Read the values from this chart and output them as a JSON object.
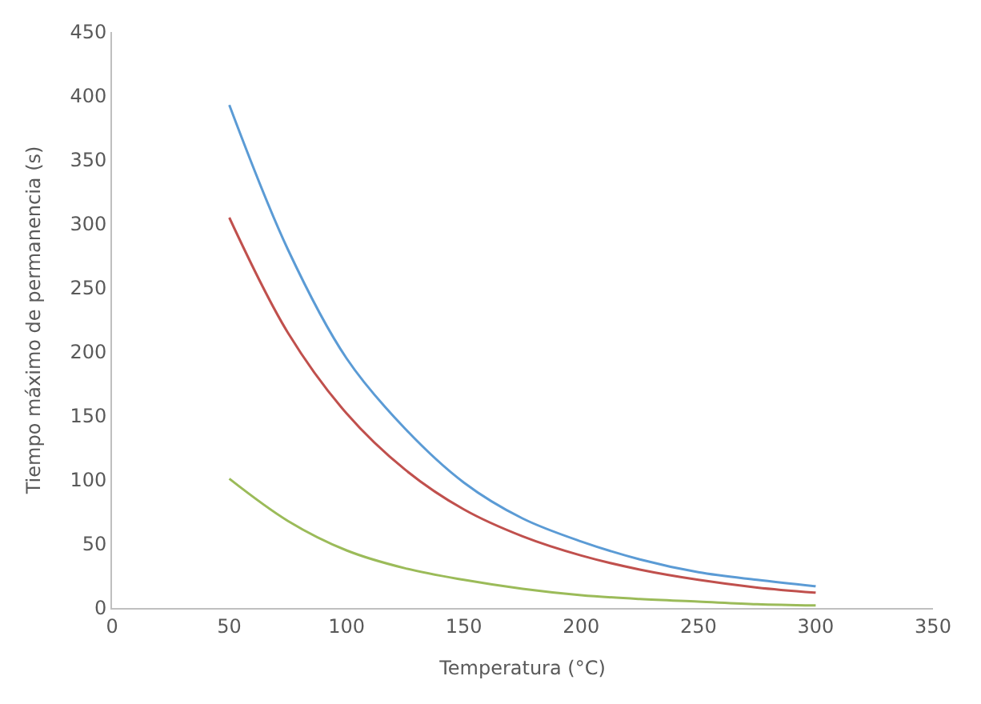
{
  "chart_data": {
    "type": "line",
    "xlabel": "Temperatura (°C)",
    "ylabel": "Tiempo máximo de permanencia (s)",
    "x": [
      50,
      75,
      100,
      125,
      150,
      175,
      200,
      225,
      250,
      275,
      300
    ],
    "series": [
      {
        "color": "#5b9bd5",
        "values": [
          393,
          280,
          195,
          140,
          98,
          70,
          52,
          38,
          28,
          22,
          17
        ]
      },
      {
        "color": "#c0504d",
        "values": [
          305,
          215,
          152,
          108,
          77,
          56,
          41,
          30,
          22,
          16,
          12
        ]
      },
      {
        "color": "#9bbb59",
        "values": [
          101,
          68,
          45,
          31,
          22,
          15,
          10,
          7,
          5,
          3,
          2
        ]
      }
    ],
    "xlim": [
      0,
      350
    ],
    "xticks": [
      0,
      50,
      100,
      150,
      200,
      250,
      300,
      350
    ],
    "ylim": [
      0,
      450
    ],
    "yticks": [
      0,
      50,
      100,
      150,
      200,
      250,
      300,
      350,
      400,
      450
    ],
    "marker": "none",
    "line_style": "solid"
  }
}
